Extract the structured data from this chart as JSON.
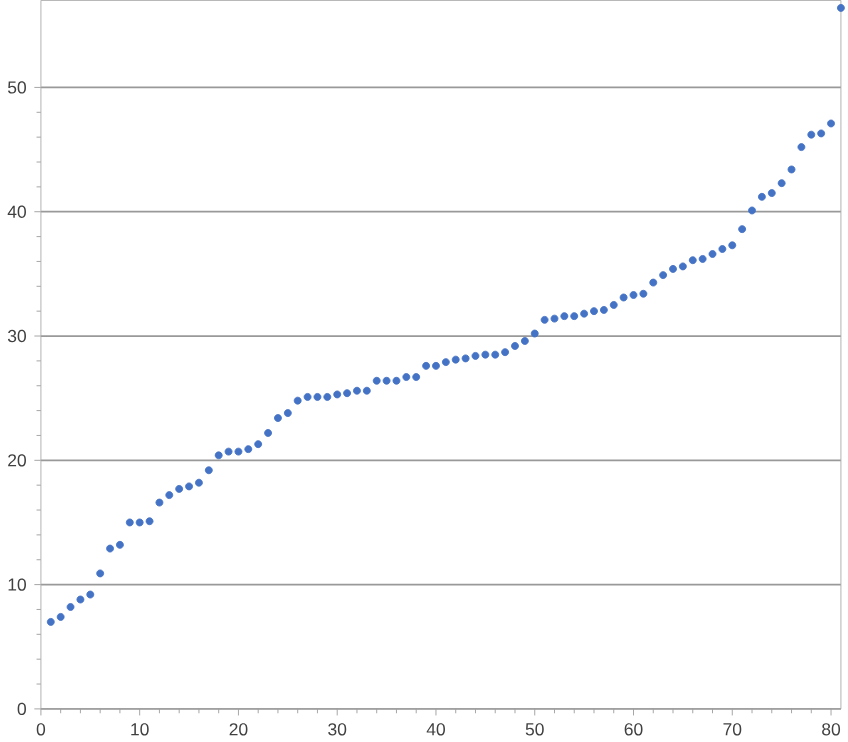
{
  "chart_data": {
    "type": "scatter",
    "marker": "circle",
    "grid": "y",
    "x": [
      1,
      2,
      3,
      4,
      5,
      6,
      7,
      8,
      9,
      10,
      11,
      12,
      13,
      14,
      15,
      16,
      17,
      18,
      19,
      20,
      21,
      22,
      23,
      24,
      25,
      26,
      27,
      28,
      29,
      30,
      31,
      32,
      33,
      34,
      35,
      36,
      37,
      38,
      39,
      40,
      41,
      42,
      43,
      44,
      45,
      46,
      47,
      48,
      49,
      50,
      51,
      52,
      53,
      54,
      55,
      56,
      57,
      58,
      59,
      60,
      61,
      62,
      63,
      64,
      65,
      66,
      67,
      68,
      69,
      70,
      71,
      72,
      73,
      74,
      75,
      76,
      77,
      78,
      79,
      80,
      81
    ],
    "values": [
      7.0,
      7.4,
      8.2,
      8.8,
      9.2,
      10.9,
      12.9,
      13.2,
      15.0,
      15.0,
      15.1,
      16.6,
      17.2,
      17.7,
      17.9,
      18.2,
      19.2,
      20.4,
      20.7,
      20.7,
      20.9,
      21.3,
      22.2,
      23.4,
      23.8,
      24.8,
      25.1,
      25.1,
      25.1,
      25.3,
      25.4,
      25.6,
      25.6,
      26.4,
      26.4,
      26.4,
      26.7,
      26.7,
      27.6,
      27.6,
      27.9,
      28.1,
      28.2,
      28.4,
      28.5,
      28.5,
      28.7,
      29.2,
      29.6,
      30.2,
      31.3,
      31.4,
      31.6,
      31.6,
      31.8,
      32.0,
      32.1,
      32.5,
      33.1,
      33.3,
      33.4,
      34.3,
      34.9,
      35.4,
      35.6,
      36.1,
      36.2,
      36.6,
      37.0,
      37.3,
      38.6,
      40.1,
      41.2,
      41.5,
      42.3,
      43.4,
      45.2,
      46.2,
      46.3,
      47.1,
      56.4
    ],
    "color": "#4472c4",
    "xlim": [
      0,
      81
    ],
    "ylim": [
      0,
      57
    ],
    "xticks": [
      0,
      10,
      20,
      30,
      40,
      50,
      60,
      70,
      80
    ],
    "yticks": [
      0,
      10,
      20,
      30,
      40,
      50
    ]
  }
}
